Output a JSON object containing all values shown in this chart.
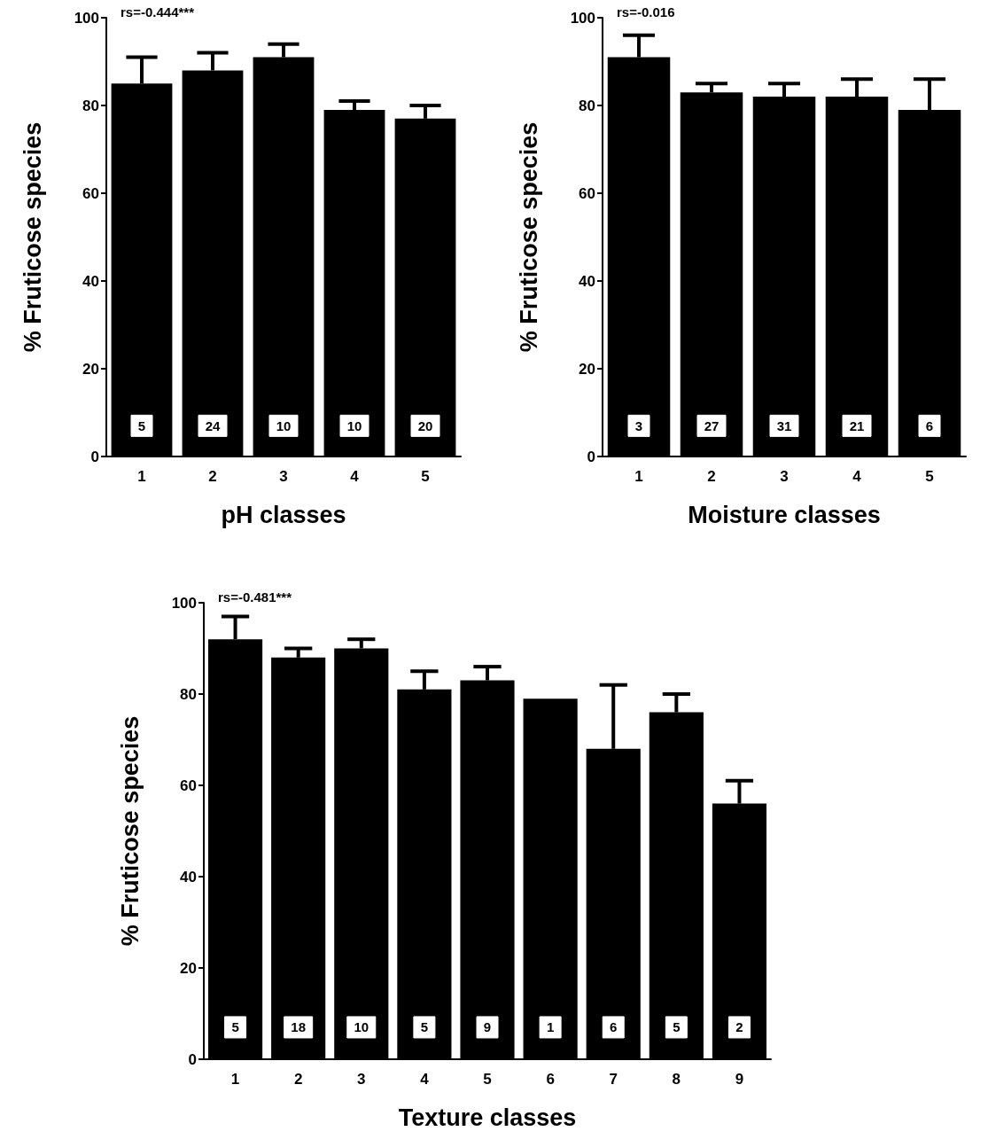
{
  "chart_data": [
    {
      "type": "bar",
      "categories": [
        "1",
        "2",
        "3",
        "4",
        "5"
      ],
      "values": [
        85,
        88,
        91,
        79,
        77
      ],
      "errors": [
        6,
        4,
        3,
        2,
        3
      ],
      "color": "#000000",
      "xlabel": "pH classes",
      "ylabel": "% Fruticose species",
      "ylim": [
        0,
        100
      ],
      "yticks": [
        0,
        20,
        40,
        60,
        80,
        100
      ],
      "annotations": [
        "rs=-0.444***",
        {
          "text": "5",
          "x": "1",
          "y": 7
        },
        {
          "text": "24",
          "x": "2",
          "y": 7
        },
        {
          "text": "10",
          "x": "3",
          "y": 7
        },
        {
          "text": "10",
          "x": "4",
          "y": 7
        },
        {
          "text": "20",
          "x": "5",
          "y": 7
        }
      ]
    },
    {
      "type": "bar",
      "categories": [
        "1",
        "2",
        "3",
        "4",
        "5"
      ],
      "values": [
        91,
        83,
        82,
        82,
        79
      ],
      "errors": [
        5,
        2,
        3,
        4,
        7
      ],
      "color": "#000000",
      "xlabel": "Moisture classes",
      "ylabel": "% Fruticose species",
      "ylim": [
        0,
        100
      ],
      "yticks": [
        0,
        20,
        40,
        60,
        80,
        100
      ],
      "annotations": [
        "rs=-0.016",
        {
          "text": "3",
          "x": "1",
          "y": 7
        },
        {
          "text": "27",
          "x": "2",
          "y": 7
        },
        {
          "text": "31",
          "x": "3",
          "y": 7
        },
        {
          "text": "21",
          "x": "4",
          "y": 7
        },
        {
          "text": "6",
          "x": "5",
          "y": 7
        }
      ]
    },
    {
      "type": "bar",
      "categories": [
        "1",
        "2",
        "3",
        "4",
        "5",
        "6",
        "7",
        "8",
        "9"
      ],
      "values": [
        92,
        88,
        90,
        81,
        83,
        79,
        68,
        76,
        56
      ],
      "errors": [
        5,
        2,
        2,
        4,
        3,
        null,
        14,
        4,
        5
      ],
      "color": "#000000",
      "xlabel": "Texture classes",
      "ylabel": "% Fruticose species",
      "ylim": [
        0,
        100
      ],
      "yticks": [
        0,
        20,
        40,
        60,
        80,
        100
      ],
      "annotations": [
        "rs=-0.481***",
        {
          "text": "5",
          "x": "1",
          "y": 7
        },
        {
          "text": "18",
          "x": "2",
          "y": 7
        },
        {
          "text": "10",
          "x": "3",
          "y": 7
        },
        {
          "text": "5",
          "x": "4",
          "y": 7
        },
        {
          "text": "9",
          "x": "5",
          "y": 7
        },
        {
          "text": "1",
          "x": "6",
          "y": 7
        },
        {
          "text": "6",
          "x": "7",
          "y": 7
        },
        {
          "text": "5",
          "x": "8",
          "y": 7
        },
        {
          "text": "2",
          "x": "9",
          "y": 7
        }
      ]
    }
  ]
}
